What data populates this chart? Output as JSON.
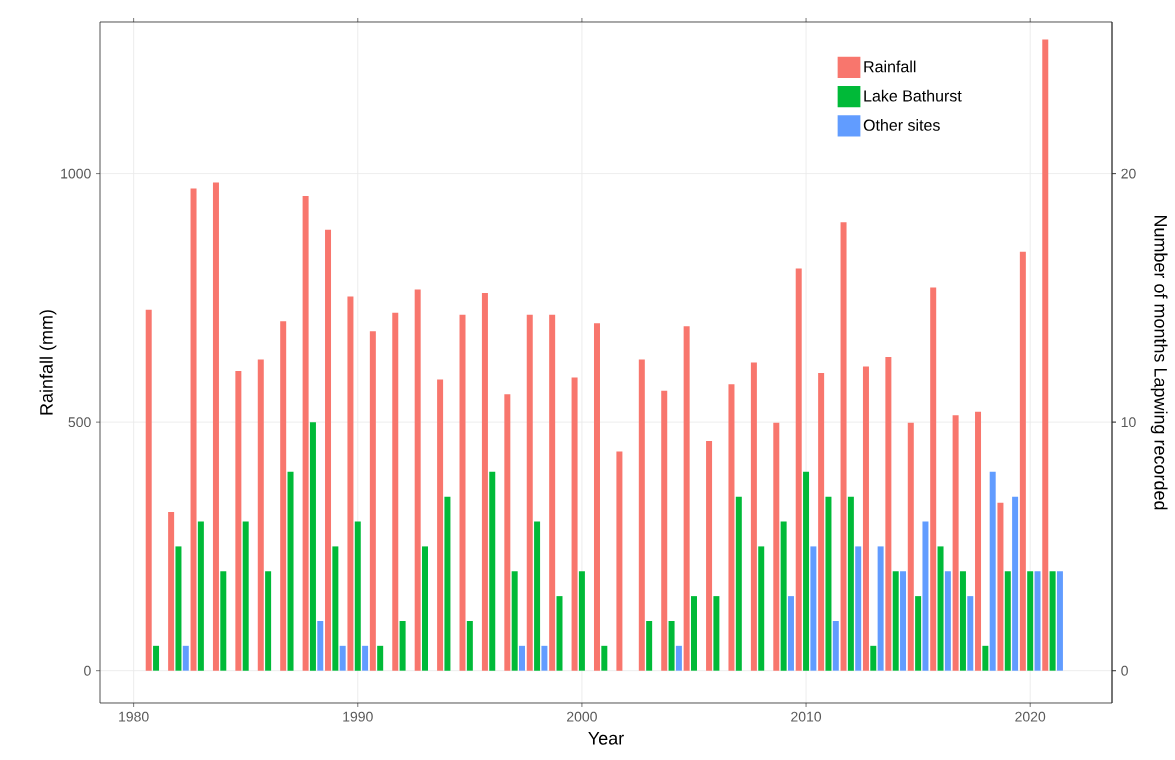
{
  "chart_data": {
    "type": "bar",
    "xlabel": "Year",
    "ylabel": "Rainfall (mm)",
    "y2label": "Number of months Lapwing recorded",
    "x": [
      1981,
      1982,
      1983,
      1984,
      1985,
      1986,
      1987,
      1988,
      1989,
      1990,
      1991,
      1992,
      1993,
      1994,
      1995,
      1996,
      1997,
      1998,
      1999,
      2000,
      2001,
      2002,
      2003,
      2004,
      2005,
      2006,
      2007,
      2008,
      2009,
      2010,
      2011,
      2012,
      2013,
      2014,
      2015,
      2016,
      2017,
      2018,
      2019,
      2020,
      2021
    ],
    "series": [
      {
        "name": "Rainfall",
        "color": "#f8766d",
        "values": [
          726,
          319,
          970,
          982,
          603,
          626,
          703,
          955,
          887,
          753,
          683,
          720,
          767,
          586,
          716,
          760,
          556,
          716,
          716,
          590,
          699,
          441,
          626,
          563,
          693,
          462,
          576,
          620,
          499,
          809,
          599,
          902,
          612,
          631,
          499,
          771,
          514,
          521,
          338,
          843,
          1270
        ]
      },
      {
        "name": "Lake Bathurst",
        "color": "#00ba38",
        "axis": "y2",
        "values": [
          1,
          5,
          6,
          4,
          6,
          4,
          8,
          10,
          5,
          6,
          1,
          2,
          5,
          7,
          2,
          8,
          4,
          6,
          3,
          4,
          1,
          0,
          2,
          2,
          3,
          3,
          7,
          5,
          6,
          8,
          7,
          7,
          1,
          4,
          3,
          5,
          4,
          1,
          4,
          4,
          4
        ]
      },
      {
        "name": "Other sites",
        "color": "#619cff",
        "axis": "y2",
        "values": [
          0,
          1,
          0,
          0,
          0,
          0,
          0,
          2,
          1,
          1,
          0,
          0,
          0,
          0,
          0,
          0,
          1,
          1,
          0,
          0,
          0,
          0,
          0,
          1,
          0,
          0,
          0,
          0,
          3,
          5,
          2,
          5,
          5,
          4,
          6,
          4,
          3,
          8,
          7,
          4,
          4
        ]
      }
    ],
    "xlim": [
      1978.5,
      2023.65
    ],
    "xticks": [
      1980,
      1990,
      2000,
      2010,
      2020
    ],
    "ylim": [
      -65,
      1305
    ],
    "yticks": [
      0,
      500,
      1000
    ],
    "y2lim": [
      -1.3,
      26.1
    ],
    "y2ticks": [
      0,
      10,
      20
    ],
    "grid": true,
    "legend": "top right"
  }
}
